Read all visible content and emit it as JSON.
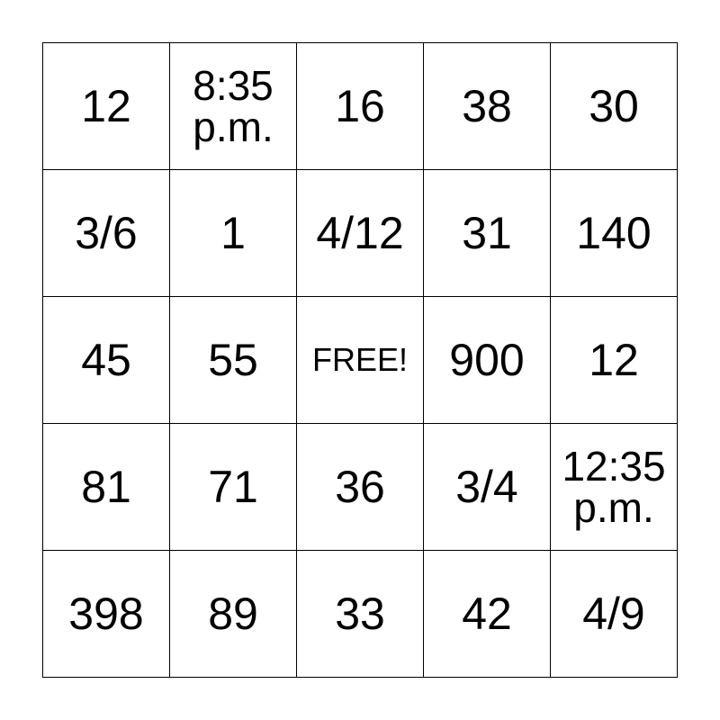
{
  "cells": [
    "12",
    "8:35\np.m.",
    "16",
    "38",
    "30",
    "3/6",
    "1",
    "4/12",
    "31",
    "140",
    "45",
    "55",
    "FREE!",
    "900",
    "12",
    "81",
    "71",
    "36",
    "3/4",
    "12:35\np.m.",
    "398",
    "89",
    "33",
    "42",
    "4/9"
  ]
}
